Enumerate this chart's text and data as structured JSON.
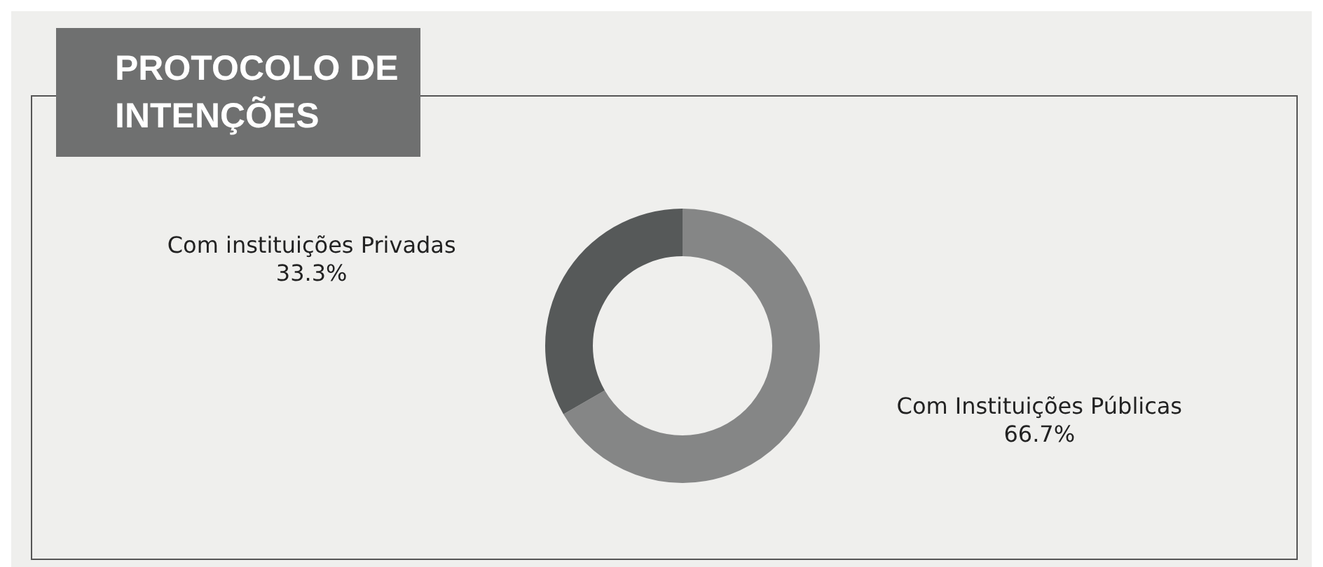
{
  "chart_data": {
    "type": "donut",
    "title": "PROTOCOLO DE INTENÇÕES",
    "categories": [
      "Com Instituições Públicas",
      "Com instituições Privadas"
    ],
    "values": [
      66.7,
      33.3
    ],
    "colors": [
      "#858686",
      "#565959"
    ],
    "value_labels": [
      "66.7%",
      "33.3%"
    ]
  }
}
